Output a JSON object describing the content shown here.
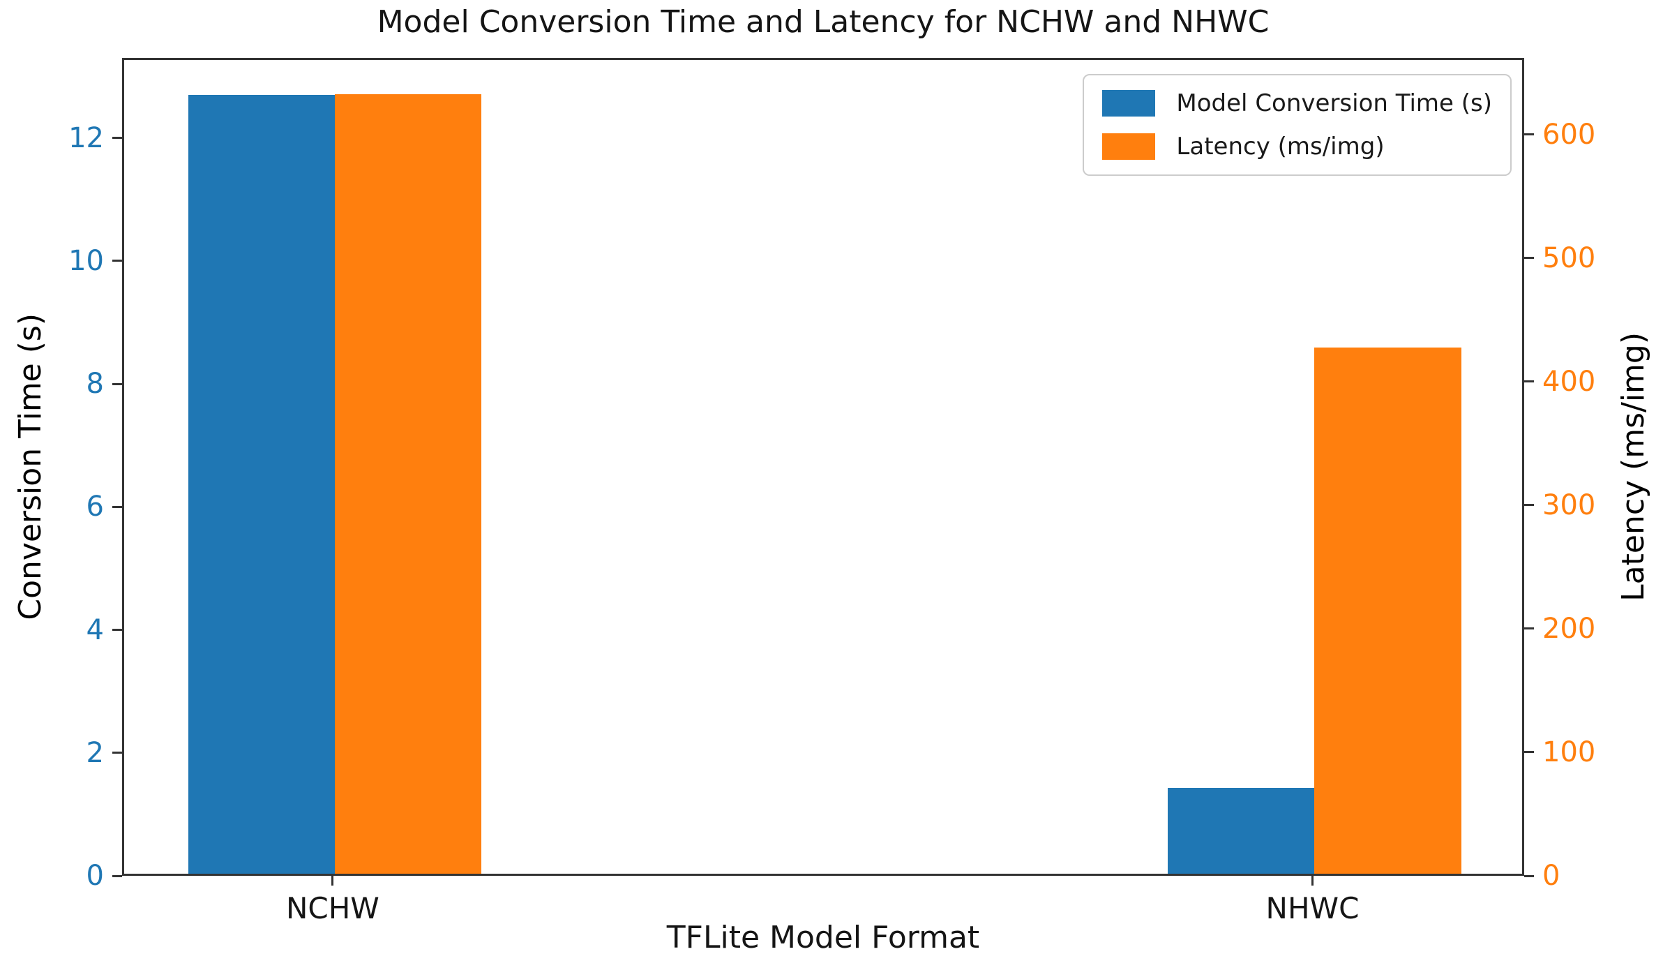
{
  "chart_data": {
    "type": "bar",
    "title": "Model Conversion Time and Latency for NCHW and NHWC",
    "xlabel": "TFLite Model Format",
    "ylabel_left": "Conversion Time (s)",
    "ylabel_right": "Latency (ms/img)",
    "categories": [
      "NCHW",
      "NHWC"
    ],
    "series": [
      {
        "name": "Model Conversion Time (s)",
        "axis": "left",
        "color": "#1f77b4",
        "values": [
          12.67,
          1.4
        ]
      },
      {
        "name": "Latency (ms/img)",
        "axis": "right",
        "color": "#ff7f0e",
        "values": [
          631,
          426
        ]
      }
    ],
    "left_axis": {
      "ticks": [
        0,
        2,
        4,
        6,
        8,
        10,
        12
      ],
      "max": 13.3,
      "color": "#1f77b4"
    },
    "right_axis": {
      "ticks": [
        0,
        100,
        200,
        300,
        400,
        500,
        600
      ],
      "max": 662,
      "color": "#ff7f0e"
    },
    "legend": {
      "position": "upper right",
      "entries": [
        "Model Conversion Time (s)",
        "Latency (ms/img)"
      ]
    },
    "grid": false,
    "spine_color": "#333333"
  }
}
